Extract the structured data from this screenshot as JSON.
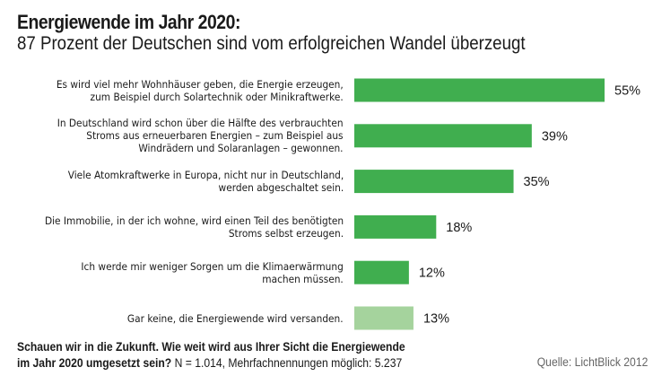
{
  "chart_data": {
    "type": "bar",
    "orientation": "horizontal",
    "title": "Energiewende im Jahr 2020:",
    "subtitle": "87 Prozent der Deutschen sind vom erfolgreichen Wandel überzeugt",
    "unit": "%",
    "categories": [
      [
        "Es wird viel mehr Wohnhäuser geben, die Energie erzeugen,",
        "zum Beispiel durch Solartechnik oder Minikraftwerke."
      ],
      [
        "In Deutschland wird schon über die Hälfte des verbrauchten",
        "Stroms aus erneuerbaren Energien – zum Beispiel aus",
        "Windrädern und Solaranlagen – gewonnen."
      ],
      [
        "Viele Atomkraftwerke in Europa, nicht nur in Deutschland,",
        "werden abgeschaltet sein."
      ],
      [
        "Die Immobilie, in der ich wohne, wird einen Teil des benötigten",
        "Stroms selbst erzeugen."
      ],
      [
        "Ich werde mir weniger Sorgen um die Klimaerwärmung",
        "machen müssen."
      ],
      [
        "Gar keine, die Energiewende wird versanden."
      ]
    ],
    "values": [
      55,
      39,
      35,
      18,
      12,
      13
    ],
    "value_labels": [
      "55%",
      "39%",
      "35%",
      "18%",
      "12%",
      "13%"
    ],
    "colors": [
      "#40ae4f",
      "#40ae4f",
      "#40ae4f",
      "#40ae4f",
      "#40ae4f",
      "#a5d39d"
    ],
    "xlim": [
      0,
      55
    ],
    "grid": false,
    "legend": "none"
  },
  "footer": {
    "question_bold_1": "Schauen wir in die Zukunft. Wie weit wird aus Ihrer Sicht die Energiewende",
    "question_bold_2": "im Jahr 2020 umgesetzt sein?",
    "sample_note": " N = 1.014, Mehrfachnennungen möglich: 5.237"
  },
  "source": "Quelle: LichtBlick 2012"
}
